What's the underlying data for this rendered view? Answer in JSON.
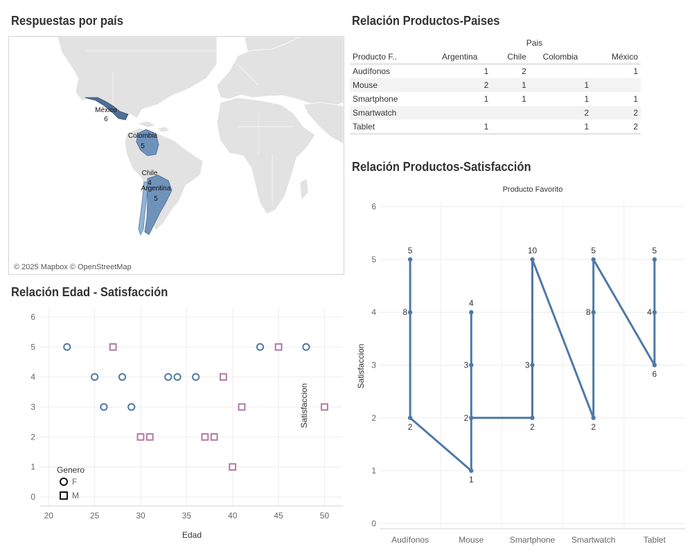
{
  "titles": {
    "map": "Respuestas por país",
    "table": "Relación Productos-Paises",
    "scatter": "Relación Edad - Satisfacción",
    "line": "Relación Productos-Satisfacción"
  },
  "map": {
    "attribution": "© 2025 Mapbox © OpenStreetMap",
    "colors": {
      "land": "#e2e2e2",
      "water": "#ffffff",
      "dark": "#4f6f96",
      "mid": "#6f92bb",
      "light": "#93b4d6"
    },
    "countries": [
      {
        "name": "México",
        "count": "6"
      },
      {
        "name": "Colombia",
        "count": "5"
      },
      {
        "name": "Chile",
        "count": "4"
      },
      {
        "name": "Argentina",
        "count": "5"
      }
    ]
  },
  "table": {
    "column_group": "Pais",
    "row_header": "Producto F..",
    "columns": [
      "Argentina",
      "Chile",
      "Colombia",
      "México"
    ],
    "rows": [
      {
        "product": "Audífonos",
        "values": [
          "1",
          "2",
          "",
          "1"
        ]
      },
      {
        "product": "Mouse",
        "values": [
          "2",
          "1",
          "1",
          ""
        ]
      },
      {
        "product": "Smartphone",
        "values": [
          "1",
          "1",
          "1",
          "1"
        ]
      },
      {
        "product": "Smartwatch",
        "values": [
          "",
          "",
          "2",
          "2"
        ]
      },
      {
        "product": "Tablet",
        "values": [
          "1",
          "",
          "1",
          "2"
        ]
      }
    ]
  },
  "chart_data": [
    {
      "type": "scatter",
      "title": "Relación Edad - Satisfacción",
      "xlabel": "Edad",
      "ylabel": "Satisfaccion",
      "xlim": [
        19,
        52
      ],
      "ylim": [
        -0.3,
        6.3
      ],
      "x_ticks": [
        20,
        25,
        30,
        35,
        40,
        45,
        50
      ],
      "y_ticks": [
        0,
        1,
        2,
        3,
        4,
        5,
        6
      ],
      "grid": true,
      "legend": {
        "title": "Genero",
        "placement": "bottom-left"
      },
      "series": [
        {
          "name": "F",
          "marker": "circle",
          "color": "#4e79a7",
          "points": [
            [
              22,
              5
            ],
            [
              25,
              4
            ],
            [
              26,
              3
            ],
            [
              28,
              4
            ],
            [
              29,
              3
            ],
            [
              33,
              4
            ],
            [
              34,
              4
            ],
            [
              36,
              4
            ],
            [
              43,
              5
            ],
            [
              48,
              5
            ]
          ]
        },
        {
          "name": "M",
          "marker": "square",
          "color": "#b07aa1",
          "points": [
            [
              27,
              5
            ],
            [
              30,
              2
            ],
            [
              31,
              2
            ],
            [
              37,
              2
            ],
            [
              38,
              2
            ],
            [
              39,
              4
            ],
            [
              40,
              1
            ],
            [
              41,
              3
            ],
            [
              45,
              5
            ],
            [
              50,
              3
            ]
          ]
        }
      ]
    },
    {
      "type": "line",
      "title": "Relación Productos-Satisfacción",
      "header": "Producto Favorito",
      "ylabel": "Satisfaccion",
      "ylim": [
        -0.1,
        6.1
      ],
      "y_ticks": [
        0,
        1,
        2,
        3,
        4,
        5,
        6
      ],
      "grid": true,
      "color": "#4e79a7",
      "categories": [
        "Audífonos",
        "Mouse",
        "Smartphone",
        "Smartwatch",
        "Tablet"
      ],
      "points": [
        {
          "cat": 0,
          "y": 5,
          "label": "5",
          "pos": "above"
        },
        {
          "cat": 0,
          "y": 4,
          "label": "8",
          "pos": "left"
        },
        {
          "cat": 0,
          "y": 2,
          "label": "2",
          "pos": "below"
        },
        {
          "cat": 1,
          "y": 1,
          "label": "1",
          "pos": "below"
        },
        {
          "cat": 1,
          "y": 4,
          "label": "4",
          "pos": "above"
        },
        {
          "cat": 1,
          "y": 3,
          "label": "3",
          "pos": "left"
        },
        {
          "cat": 1,
          "y": 2,
          "label": "2",
          "pos": "left"
        },
        {
          "cat": 2,
          "y": 2,
          "label": "2",
          "pos": "below"
        },
        {
          "cat": 2,
          "y": 3,
          "label": "3",
          "pos": "left"
        },
        {
          "cat": 2,
          "y": 5,
          "label": "10",
          "pos": "above"
        },
        {
          "cat": 3,
          "y": 2,
          "label": "2",
          "pos": "below"
        },
        {
          "cat": 3,
          "y": 4,
          "label": "8",
          "pos": "left"
        },
        {
          "cat": 3,
          "y": 5,
          "label": "5",
          "pos": "above"
        },
        {
          "cat": 4,
          "y": 3,
          "label": "6",
          "pos": "below"
        },
        {
          "cat": 4,
          "y": 4,
          "label": "4",
          "pos": "left"
        },
        {
          "cat": 4,
          "y": 5,
          "label": "5",
          "pos": "above"
        }
      ]
    }
  ]
}
